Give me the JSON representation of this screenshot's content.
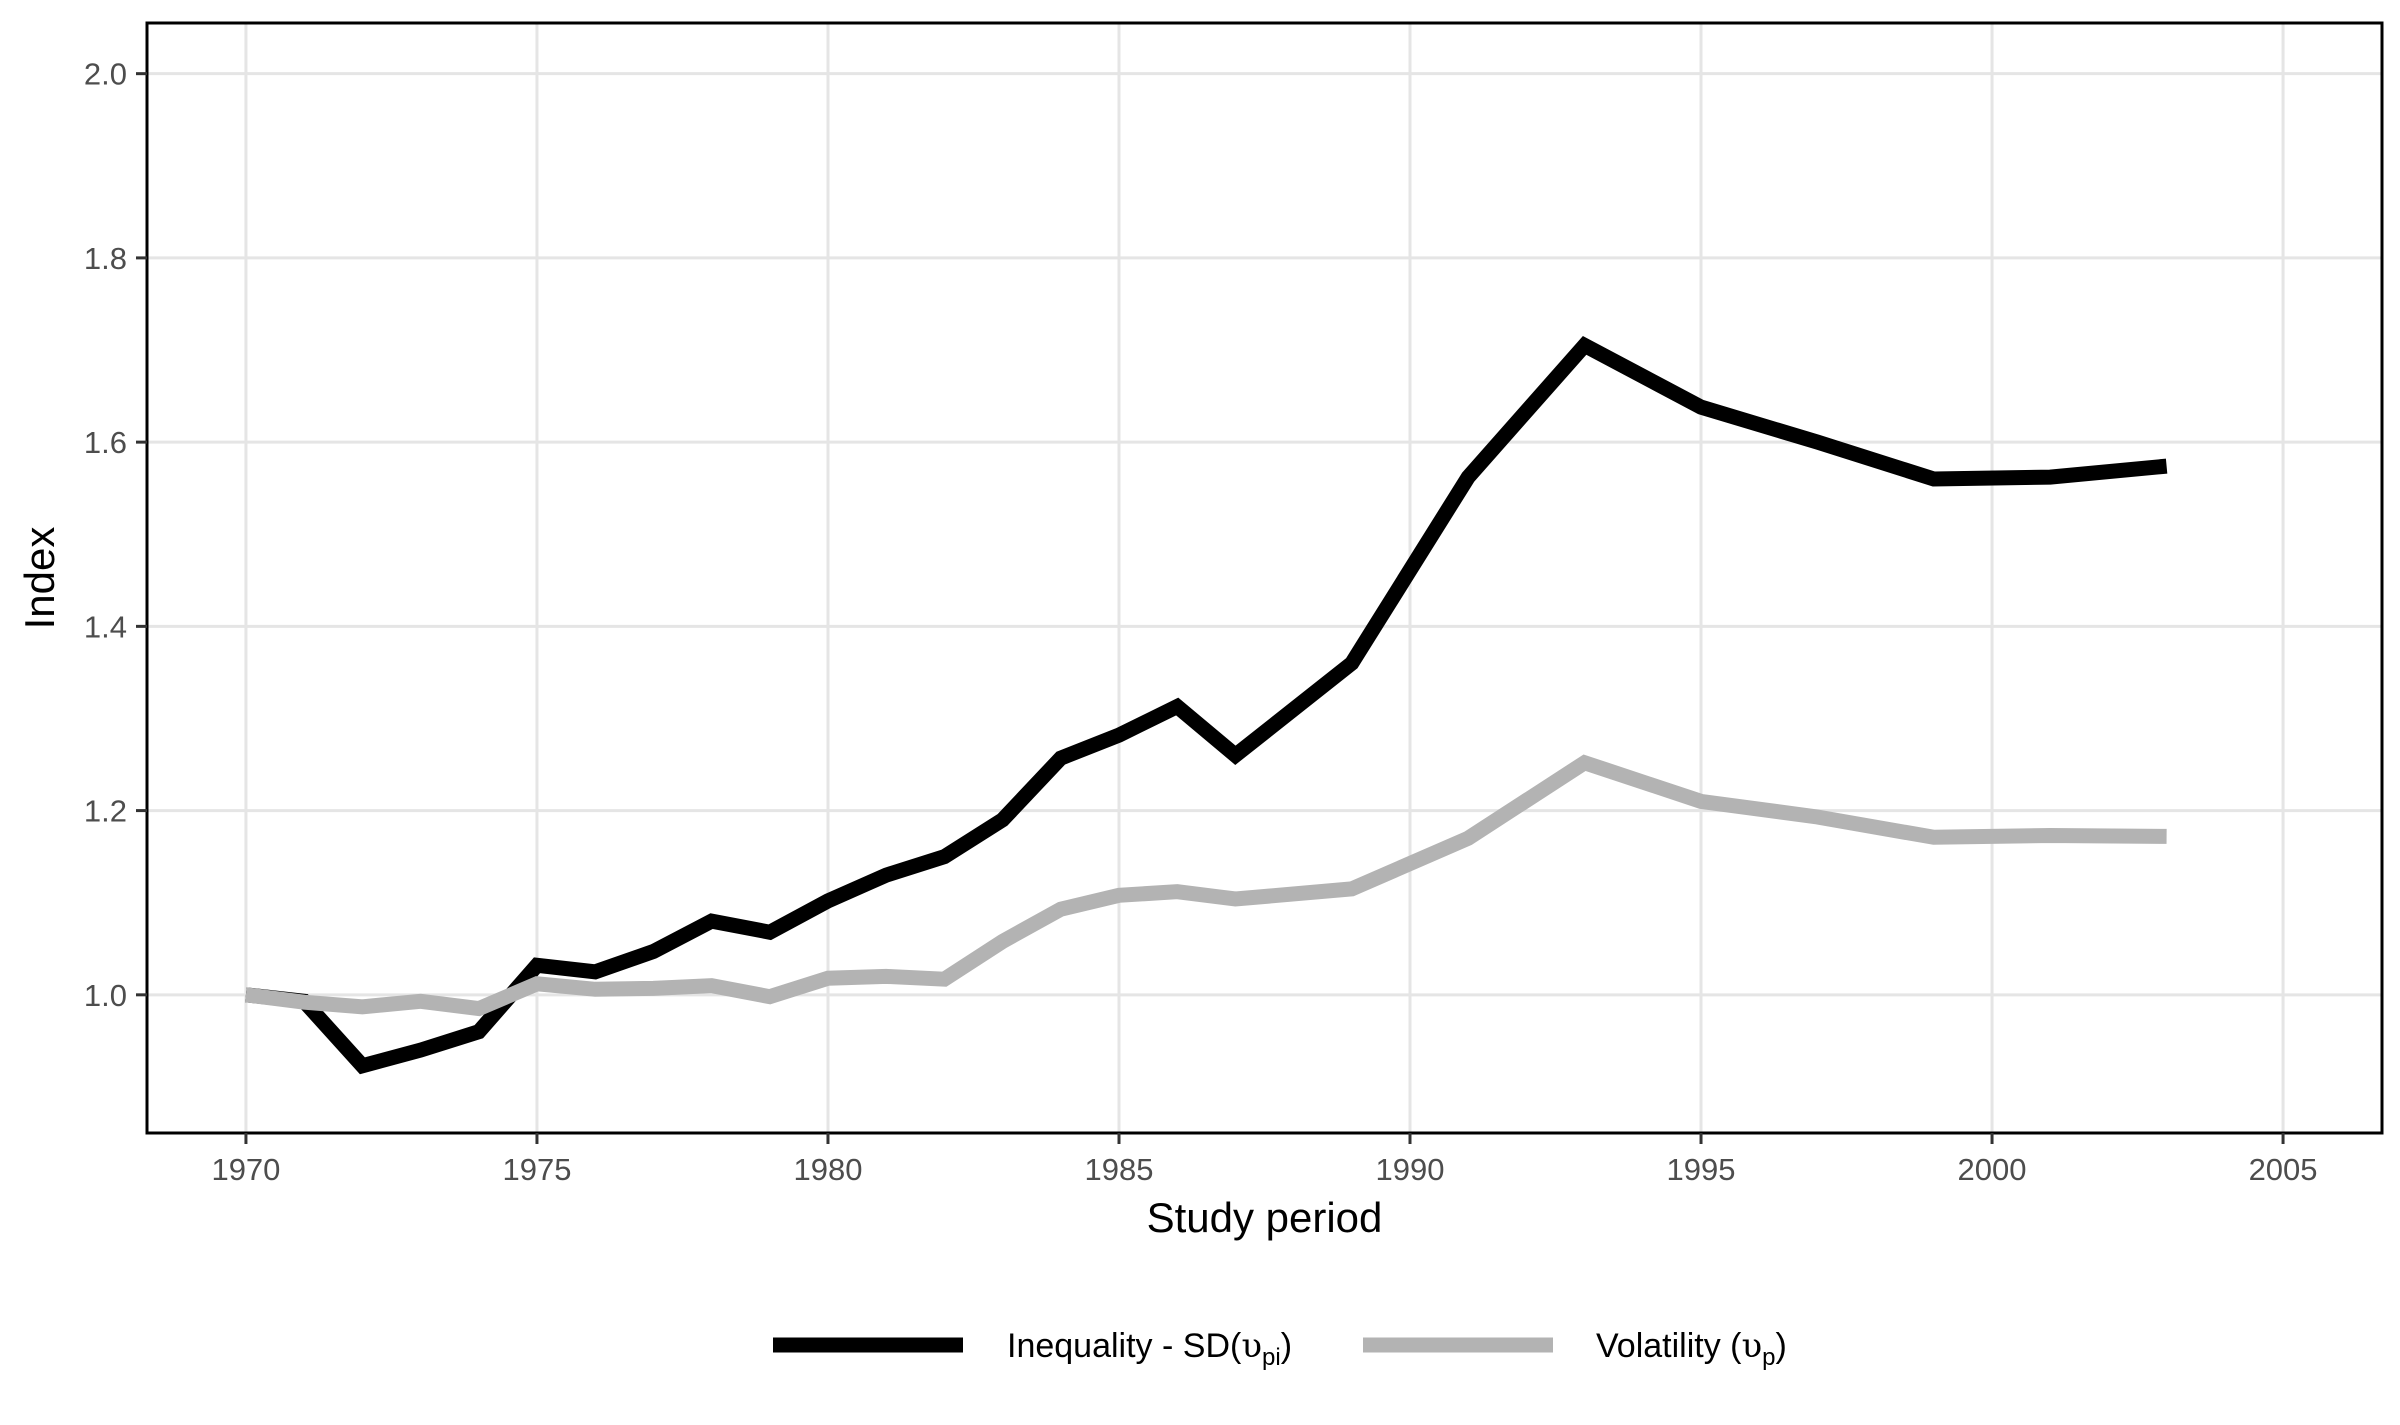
{
  "chart_data": {
    "type": "line",
    "title": "",
    "xlabel": "Study period",
    "ylabel": "Index",
    "xlim": [
      1968.3,
      2006.7
    ],
    "ylim": [
      0.85,
      2.055
    ],
    "xticks": [
      1970,
      1975,
      1980,
      1985,
      1990,
      1995,
      2000,
      2005
    ],
    "yticks": [
      1.0,
      1.2,
      1.4,
      1.6,
      1.8,
      2.0
    ],
    "ytick_labels": [
      "1.0",
      "1.2",
      "1.4",
      "1.6",
      "1.8",
      "2.0"
    ],
    "grid": true,
    "legend_position": "bottom",
    "series": [
      {
        "label_main": "Inequality - SD(",
        "label_symbol": "υ",
        "label_subscript": "pi",
        "label_close": ")",
        "color": "#000000",
        "points": [
          [
            1970,
            1.0
          ],
          [
            1971,
            0.993
          ],
          [
            1972,
            0.923
          ],
          [
            1973,
            0.94
          ],
          [
            1974,
            0.96
          ],
          [
            1975,
            1.032
          ],
          [
            1976,
            1.025
          ],
          [
            1977,
            1.047
          ],
          [
            1978,
            1.08
          ],
          [
            1979,
            1.068
          ],
          [
            1980,
            1.102
          ],
          [
            1981,
            1.13
          ],
          [
            1982,
            1.15
          ],
          [
            1983,
            1.19
          ],
          [
            1984,
            1.257
          ],
          [
            1985,
            1.282
          ],
          [
            1986,
            1.313
          ],
          [
            1987,
            1.26
          ],
          [
            1989,
            1.36
          ],
          [
            1991,
            1.562
          ],
          [
            1993,
            1.705
          ],
          [
            1995,
            1.638
          ],
          [
            1997,
            1.6
          ],
          [
            1999,
            1.56
          ],
          [
            2001,
            1.562
          ],
          [
            2003,
            1.574
          ]
        ]
      },
      {
        "label_main": "Volatility (",
        "label_symbol": "υ",
        "label_subscript": "p",
        "label_close": ")",
        "color": "#b3b3b3",
        "points": [
          [
            1970,
            1.0
          ],
          [
            1971,
            0.992
          ],
          [
            1972,
            0.987
          ],
          [
            1973,
            0.993
          ],
          [
            1974,
            0.985
          ],
          [
            1975,
            1.012
          ],
          [
            1976,
            1.006
          ],
          [
            1977,
            1.007
          ],
          [
            1978,
            1.01
          ],
          [
            1979,
            0.998
          ],
          [
            1980,
            1.018
          ],
          [
            1981,
            1.02
          ],
          [
            1982,
            1.017
          ],
          [
            1983,
            1.058
          ],
          [
            1984,
            1.093
          ],
          [
            1985,
            1.108
          ],
          [
            1986,
            1.112
          ],
          [
            1987,
            1.104
          ],
          [
            1989,
            1.115
          ],
          [
            1991,
            1.17
          ],
          [
            1993,
            1.252
          ],
          [
            1995,
            1.21
          ],
          [
            1997,
            1.193
          ],
          [
            1999,
            1.171
          ],
          [
            2001,
            1.173
          ],
          [
            2003,
            1.172
          ]
        ]
      }
    ]
  }
}
